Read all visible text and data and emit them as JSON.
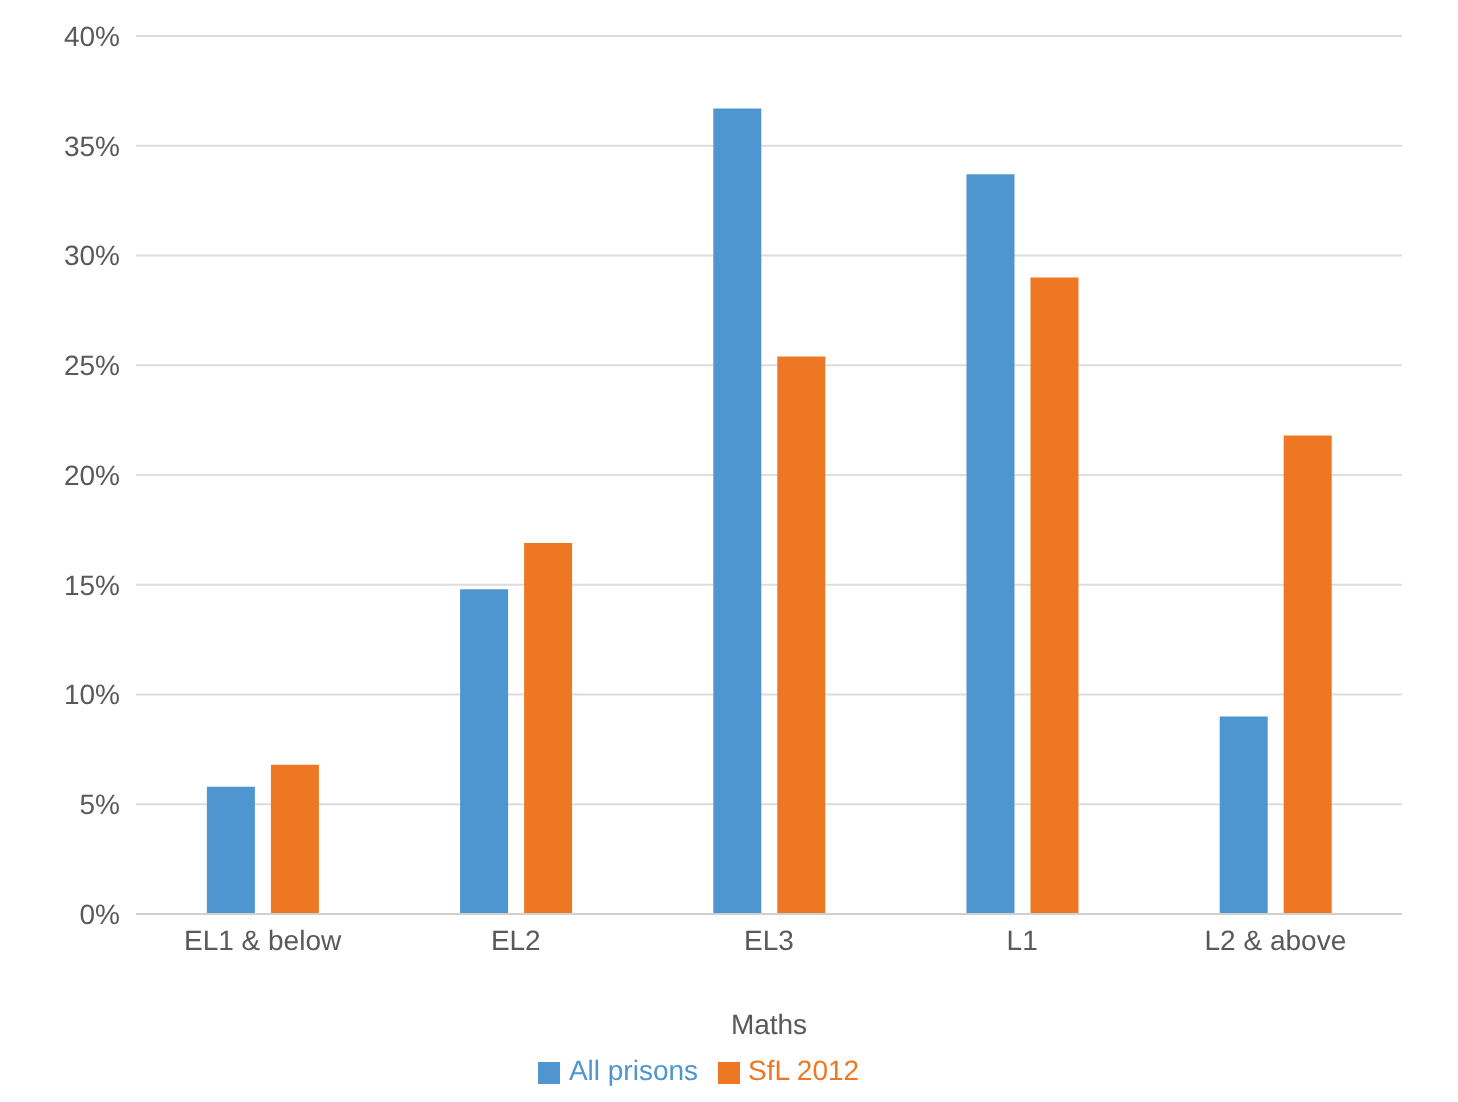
{
  "chart_data": {
    "type": "bar",
    "xlabel": "Maths",
    "categories": [
      "EL1 & below",
      "EL2",
      "EL3",
      "L1",
      "L2 & above"
    ],
    "series": [
      {
        "name": "All prisons",
        "color": "#4f95d0",
        "values": [
          5.8,
          14.8,
          36.7,
          33.7,
          9.0
        ]
      },
      {
        "name": "SfL 2012",
        "color": "#ed7722",
        "values": [
          6.8,
          16.9,
          25.4,
          29.0,
          21.8
        ]
      }
    ],
    "ylim": [
      0,
      40
    ],
    "yticks": [
      {
        "value": 0,
        "label": "0%"
      },
      {
        "value": 5,
        "label": "5%"
      },
      {
        "value": 10,
        "label": "10%"
      },
      {
        "value": 15,
        "label": "15%"
      },
      {
        "value": 20,
        "label": "20%"
      },
      {
        "value": 25,
        "label": "25%"
      },
      {
        "value": 30,
        "label": "30%"
      },
      {
        "value": 35,
        "label": "35%"
      },
      {
        "value": 40,
        "label": "40%"
      }
    ],
    "grid": "y",
    "legend": "bottom"
  }
}
